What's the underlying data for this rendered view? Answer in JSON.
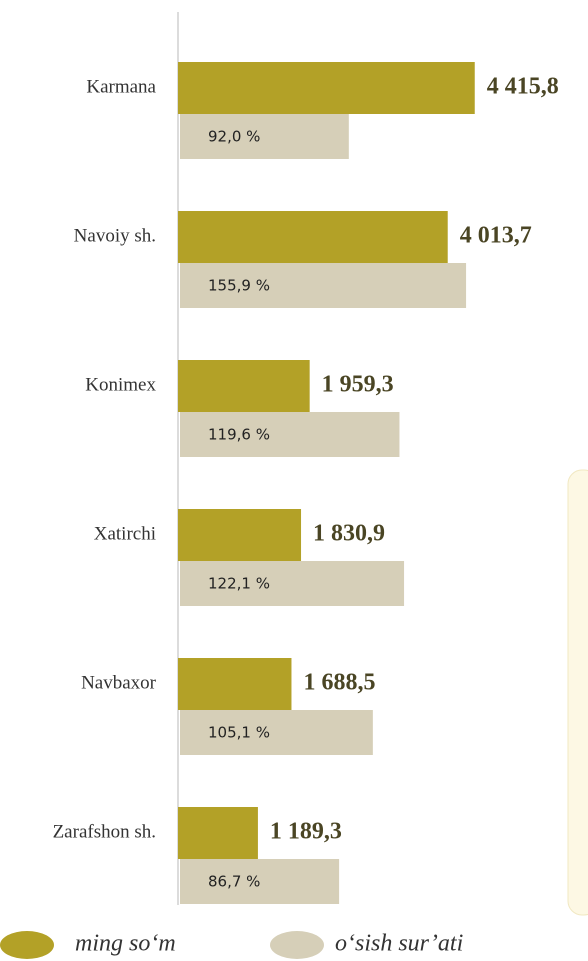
{
  "chart_data": {
    "type": "bar",
    "orientation": "horizontal",
    "categories": [
      "Karmana",
      "Navoiy sh.",
      "Konimex",
      "Xatirchi",
      "Navbaxor",
      "Zarafshon sh."
    ],
    "series": [
      {
        "name": "ming so‘m",
        "color": "#b3a127",
        "values": [
          4415.8,
          4013.7,
          1959.3,
          1830.9,
          1688.5,
          1189.3
        ],
        "value_labels": [
          "4 415,8",
          "4 013,7",
          "1 959,3",
          "1 830,9",
          "1 688,5",
          "1 189,3"
        ]
      },
      {
        "name": "o‘sish sur’ati",
        "color": "#d6cfb8",
        "values": [
          92.0,
          155.9,
          119.6,
          122.1,
          105.1,
          86.7
        ],
        "value_labels": [
          "92,0 %",
          "155,9 %",
          "119,6 %",
          "122,1 %",
          "105,1 %",
          "86,7 %"
        ]
      }
    ]
  }
}
